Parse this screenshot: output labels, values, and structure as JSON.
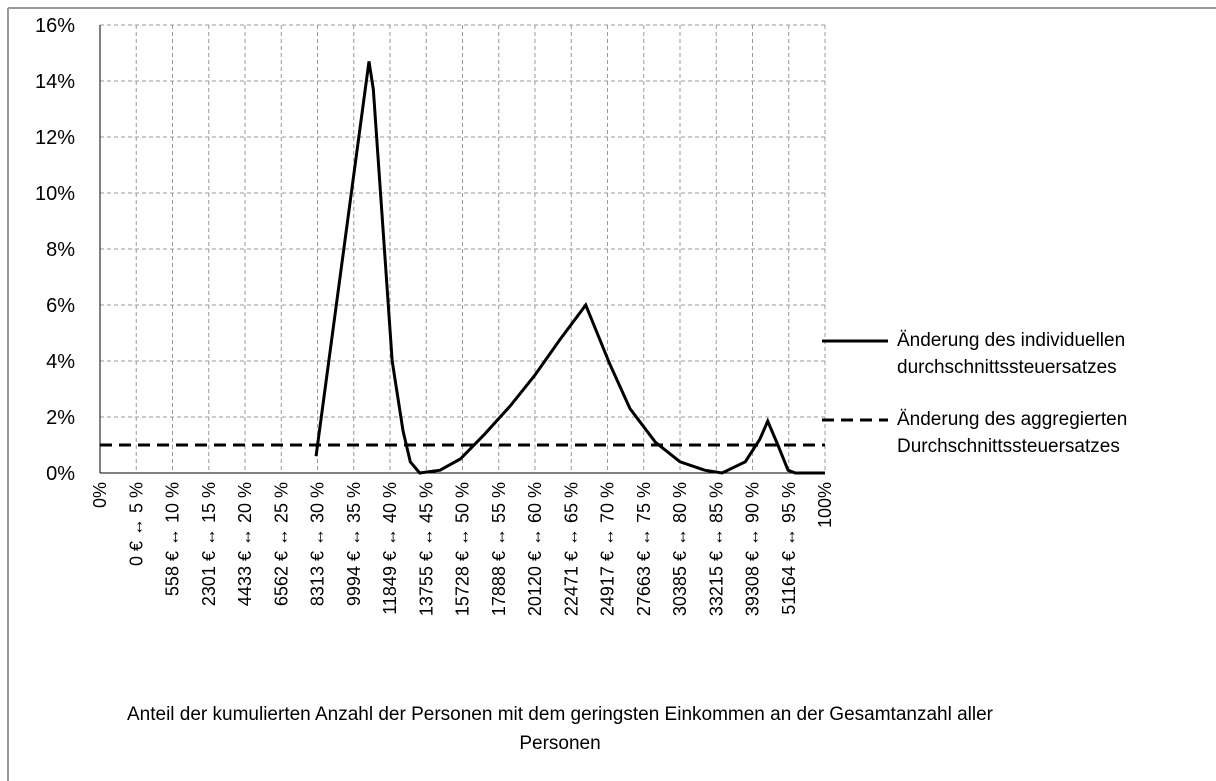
{
  "chart_data": {
    "type": "line",
    "x_label": "Anteil der  kumulierten Anzahl der Personen mit dem geringsten Einkommen an der Gesamtanzahl aller Personen",
    "xlim": [
      0,
      100
    ],
    "ylim": [
      0,
      16
    ],
    "xticks": [
      {
        "value": 0,
        "label": "0%"
      },
      {
        "value": 5,
        "label": "0 € ↔ 5 %"
      },
      {
        "value": 10,
        "label": "558 € ↔ 10 %"
      },
      {
        "value": 15,
        "label": "2301 € ↔ 15 %"
      },
      {
        "value": 20,
        "label": "4433 € ↔ 20 %"
      },
      {
        "value": 25,
        "label": "6562 € ↔ 25 %"
      },
      {
        "value": 30,
        "label": "8313 € ↔ 30 %"
      },
      {
        "value": 35,
        "label": "9994 € ↔ 35 %"
      },
      {
        "value": 40,
        "label": "11849 € ↔ 40 %"
      },
      {
        "value": 45,
        "label": "13755 € ↔ 45 %"
      },
      {
        "value": 50,
        "label": "15728 € ↔ 50 %"
      },
      {
        "value": 55,
        "label": "17888 € ↔ 55 %"
      },
      {
        "value": 60,
        "label": "20120 € ↔ 60 %"
      },
      {
        "value": 65,
        "label": "22471 € ↔ 65 %"
      },
      {
        "value": 70,
        "label": "24917 € ↔ 70 %"
      },
      {
        "value": 75,
        "label": "27663 € ↔ 75 %"
      },
      {
        "value": 80,
        "label": "30385 € ↔ 80 %"
      },
      {
        "value": 85,
        "label": "33215 € ↔ 85 %"
      },
      {
        "value": 90,
        "label": "39308 € ↔ 90 %"
      },
      {
        "value": 95,
        "label": "51164 € ↔ 95 %"
      },
      {
        "value": 100,
        "label": "100%"
      }
    ],
    "yticks": [
      {
        "value": 0,
        "label": "0%"
      },
      {
        "value": 2,
        "label": "2%"
      },
      {
        "value": 4,
        "label": "4%"
      },
      {
        "value": 6,
        "label": "6%"
      },
      {
        "value": 8,
        "label": "8%"
      },
      {
        "value": 10,
        "label": "10%"
      },
      {
        "value": 12,
        "label": "12%"
      },
      {
        "value": 14,
        "label": "14%"
      },
      {
        "value": 16,
        "label": "16%"
      }
    ],
    "grid": true,
    "legend": "right",
    "series": [
      {
        "name": "Änderung des individuellen durchschnittssteuersatzes",
        "color": "#000000",
        "dash": "solid",
        "x": [
          29.8,
          37.1,
          37.7,
          40.3,
          41.8,
          42.8,
          44.1,
          46.9,
          49.7,
          53.1,
          56.6,
          60.0,
          63.4,
          67.0,
          70.3,
          73.1,
          76.6,
          80.0,
          83.4,
          85.8,
          89.0,
          91.0,
          92.1,
          93.5,
          94.9,
          95.9,
          100
        ],
        "values": [
          0.6,
          14.7,
          13.7,
          4.0,
          1.5,
          0.4,
          0,
          0.1,
          0.5,
          1.4,
          2.4,
          3.5,
          4.75,
          6.0,
          3.9,
          2.3,
          1.1,
          0.4,
          0.1,
          0,
          0.4,
          1.2,
          1.85,
          1.0,
          0.1,
          0,
          0
        ]
      },
      {
        "name": "Änderung des aggregierten Durchschnittssteuersatzes",
        "color": "#000000",
        "dash": "dashed",
        "x": [
          0,
          100
        ],
        "values": [
          1.0,
          1.0
        ]
      }
    ]
  }
}
